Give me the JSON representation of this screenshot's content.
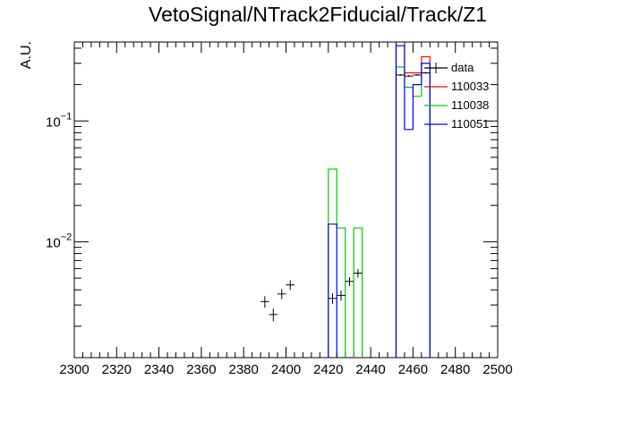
{
  "chart_data": {
    "type": "histogram",
    "title": "VetoSignal/NTrack2Fiducial/Track/Z1",
    "xlabel": "",
    "ylabel": "A.U.",
    "xlim": [
      2300,
      2500
    ],
    "ylim": [
      0.0011,
      0.45
    ],
    "yscale": "log",
    "grid": false,
    "legend_position": "top-right",
    "x_ticks": [
      2300,
      2320,
      2340,
      2360,
      2380,
      2400,
      2420,
      2440,
      2460,
      2480,
      2500
    ],
    "x_tick_labels": [
      "2300",
      "2320",
      "2340",
      "2360",
      "2380",
      "2400",
      "2420",
      "2440",
      "2460",
      "2480",
      "2500"
    ],
    "y_ticks": [
      0.01,
      0.1
    ],
    "y_tick_labels": [
      {
        "base": "10",
        "exp": "−2"
      },
      {
        "base": "10",
        "exp": "−1"
      }
    ],
    "bin_width": 4,
    "data": {
      "name": "data",
      "color": "#000000",
      "points": [
        {
          "x": 2390,
          "y": 0.0032,
          "err": 0.00035
        },
        {
          "x": 2394,
          "y": 0.0025,
          "err": 0.0003
        },
        {
          "x": 2398,
          "y": 0.0037,
          "err": 0.00035
        },
        {
          "x": 2402,
          "y": 0.0044,
          "err": 0.0004
        },
        {
          "x": 2422,
          "y": 0.0034,
          "err": 0.00035
        },
        {
          "x": 2426,
          "y": 0.0036,
          "err": 0.00035
        },
        {
          "x": 2430,
          "y": 0.0047,
          "err": 0.0004
        },
        {
          "x": 2434,
          "y": 0.0055,
          "err": 0.00045
        },
        {
          "x": 2454,
          "y": 0.24,
          "err": 0.004
        },
        {
          "x": 2458,
          "y": 0.235,
          "err": 0.004
        },
        {
          "x": 2462,
          "y": 0.24,
          "err": 0.004
        },
        {
          "x": 2466,
          "y": 0.25,
          "err": 0.004
        }
      ]
    },
    "series": [
      {
        "name": "110033",
        "color": "#ff0000",
        "bins": [
          {
            "x0": 2452,
            "x1": 2456,
            "y": 0.42
          },
          {
            "x0": 2456,
            "x1": 2460,
            "y": 0.25
          },
          {
            "x0": 2460,
            "x1": 2464,
            "y": 0.25
          },
          {
            "x0": 2464,
            "x1": 2468,
            "y": 0.34
          }
        ]
      },
      {
        "name": "110038",
        "color": "#00cc00",
        "bins": [
          {
            "x0": 2420,
            "x1": 2424,
            "y": 0.04
          },
          {
            "x0": 2424,
            "x1": 2428,
            "y": 0.013
          },
          {
            "x0": 2432,
            "x1": 2436,
            "y": 0.013
          },
          {
            "x0": 2452,
            "x1": 2456,
            "y": 0.28
          },
          {
            "x0": 2456,
            "x1": 2460,
            "y": 0.19
          },
          {
            "x0": 2460,
            "x1": 2464,
            "y": 0.16
          },
          {
            "x0": 2464,
            "x1": 2468,
            "y": 0.3
          }
        ]
      },
      {
        "name": "110051",
        "color": "#0000ff",
        "bins": [
          {
            "x0": 2420,
            "x1": 2424,
            "y": 0.014
          },
          {
            "x0": 2452,
            "x1": 2456,
            "y": 0.42
          },
          {
            "x0": 2456,
            "x1": 2460,
            "y": 0.085
          },
          {
            "x0": 2460,
            "x1": 2464,
            "y": 0.2
          },
          {
            "x0": 2464,
            "x1": 2468,
            "y": 0.3
          }
        ]
      }
    ]
  }
}
